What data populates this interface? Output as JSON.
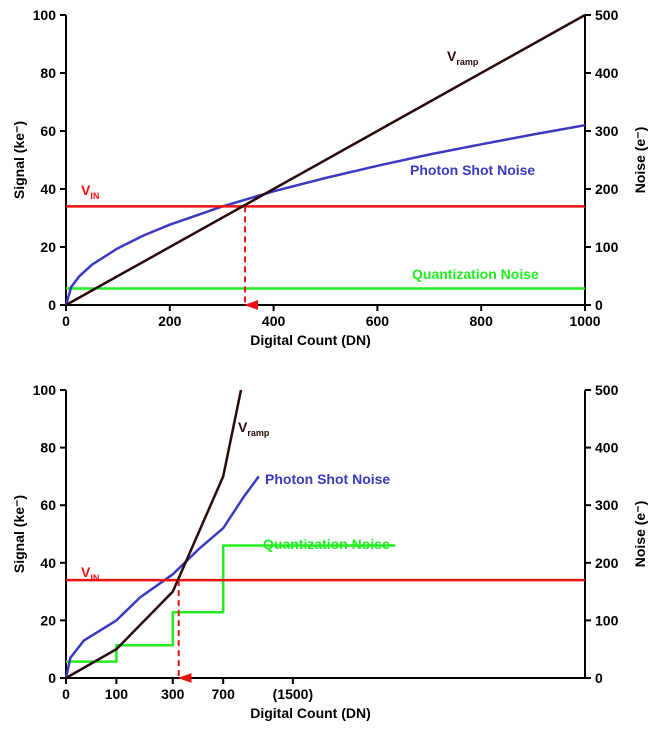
{
  "chart_data": [
    {
      "type": "line",
      "xlabel": "Digital Count (DN)",
      "ylabel_left": "Signal (ke⁻)",
      "ylabel_right": "Noise (e⁻)",
      "xlim": [
        0,
        1000
      ],
      "ylim_left": [
        0,
        100
      ],
      "ylim_right": [
        0,
        500
      ],
      "x_ticks": [
        0,
        200,
        400,
        600,
        800,
        1000
      ],
      "x_tick_labels": [
        "0",
        "200",
        "400",
        "600",
        "800",
        "1000"
      ],
      "y_ticks_left": [
        0,
        20,
        40,
        60,
        80,
        100
      ],
      "y_ticks_right": [
        0,
        100,
        200,
        300,
        400,
        500
      ],
      "grid": false,
      "series": [
        {
          "name": "V_ramp",
          "label_main": "V",
          "label_sub": "ramp",
          "color": "#2a0a0a",
          "axis": "left",
          "x": [
            0,
            1000
          ],
          "y": [
            0,
            100
          ]
        },
        {
          "name": "Photon Shot Noise",
          "color": "#3a3ac0",
          "axis": "left",
          "x": [
            0,
            10,
            25,
            50,
            100,
            150,
            200,
            300,
            400,
            500,
            600,
            700,
            800,
            900,
            1000
          ],
          "y": [
            0,
            6.2,
            9.8,
            13.9,
            19.6,
            24,
            27.7,
            33.9,
            39.2,
            43.8,
            48,
            51.9,
            55.4,
            58.8,
            62
          ]
        },
        {
          "name": "Quantization Noise",
          "color": "#22ee22",
          "axis": "left",
          "x": [
            0,
            1000
          ],
          "y": [
            5.7,
            5.7
          ]
        },
        {
          "name": "V_IN",
          "label_main": "V",
          "label_sub": "IN",
          "color": "#ee1111",
          "axis": "left",
          "x": [
            0,
            1000
          ],
          "y": [
            34,
            34
          ]
        }
      ],
      "arrow": {
        "x": 345,
        "y_from": 34,
        "y_to": 0,
        "color": "#ee1111"
      }
    },
    {
      "type": "line",
      "xlabel": "Digital Count (DN)",
      "ylabel_left": "Signal (ke⁻)",
      "ylabel_right": "Noise (e⁻)",
      "xlim": [
        0,
        1750
      ],
      "ylim_left": [
        0,
        100
      ],
      "ylim_right": [
        0,
        500
      ],
      "x_ticks": [
        0,
        170,
        360,
        530,
        765
      ],
      "x_tick_labels": [
        "0",
        "100",
        "300",
        "700",
        "(1500)"
      ],
      "y_ticks_left": [
        0,
        20,
        40,
        60,
        80,
        100
      ],
      "y_ticks_right": [
        0,
        100,
        200,
        300,
        400,
        500
      ],
      "grid": false,
      "series": [
        {
          "name": "V_ramp",
          "label_main": "V",
          "label_sub": "ramp",
          "color": "#2a0a0a",
          "axis": "left",
          "x": [
            0,
            170,
            360,
            530,
            590
          ],
          "y": [
            0,
            10,
            30,
            70,
            100
          ]
        },
        {
          "name": "Photon Shot Noise",
          "color": "#3a3ac0",
          "axis": "left",
          "x": [
            0,
            15,
            60,
            170,
            250,
            360,
            450,
            530,
            600,
            650
          ],
          "y": [
            0,
            7,
            13,
            20,
            28,
            36,
            45,
            52,
            63,
            70
          ]
        },
        {
          "name": "Quantization Noise",
          "color": "#22ee22",
          "axis": "left",
          "x": [
            0,
            170,
            170,
            360,
            360,
            530,
            530,
            1110
          ],
          "y": [
            5.7,
            5.7,
            11.4,
            11.4,
            22.8,
            22.8,
            46,
            46
          ]
        },
        {
          "name": "V_IN",
          "label_main": "V",
          "label_sub": "IN",
          "color": "#ee1111",
          "axis": "left",
          "x": [
            0,
            1750
          ],
          "y": [
            34,
            34
          ]
        }
      ],
      "arrow": {
        "x": 380,
        "y_from": 34,
        "y_to": 0,
        "color": "#ee1111"
      }
    }
  ]
}
